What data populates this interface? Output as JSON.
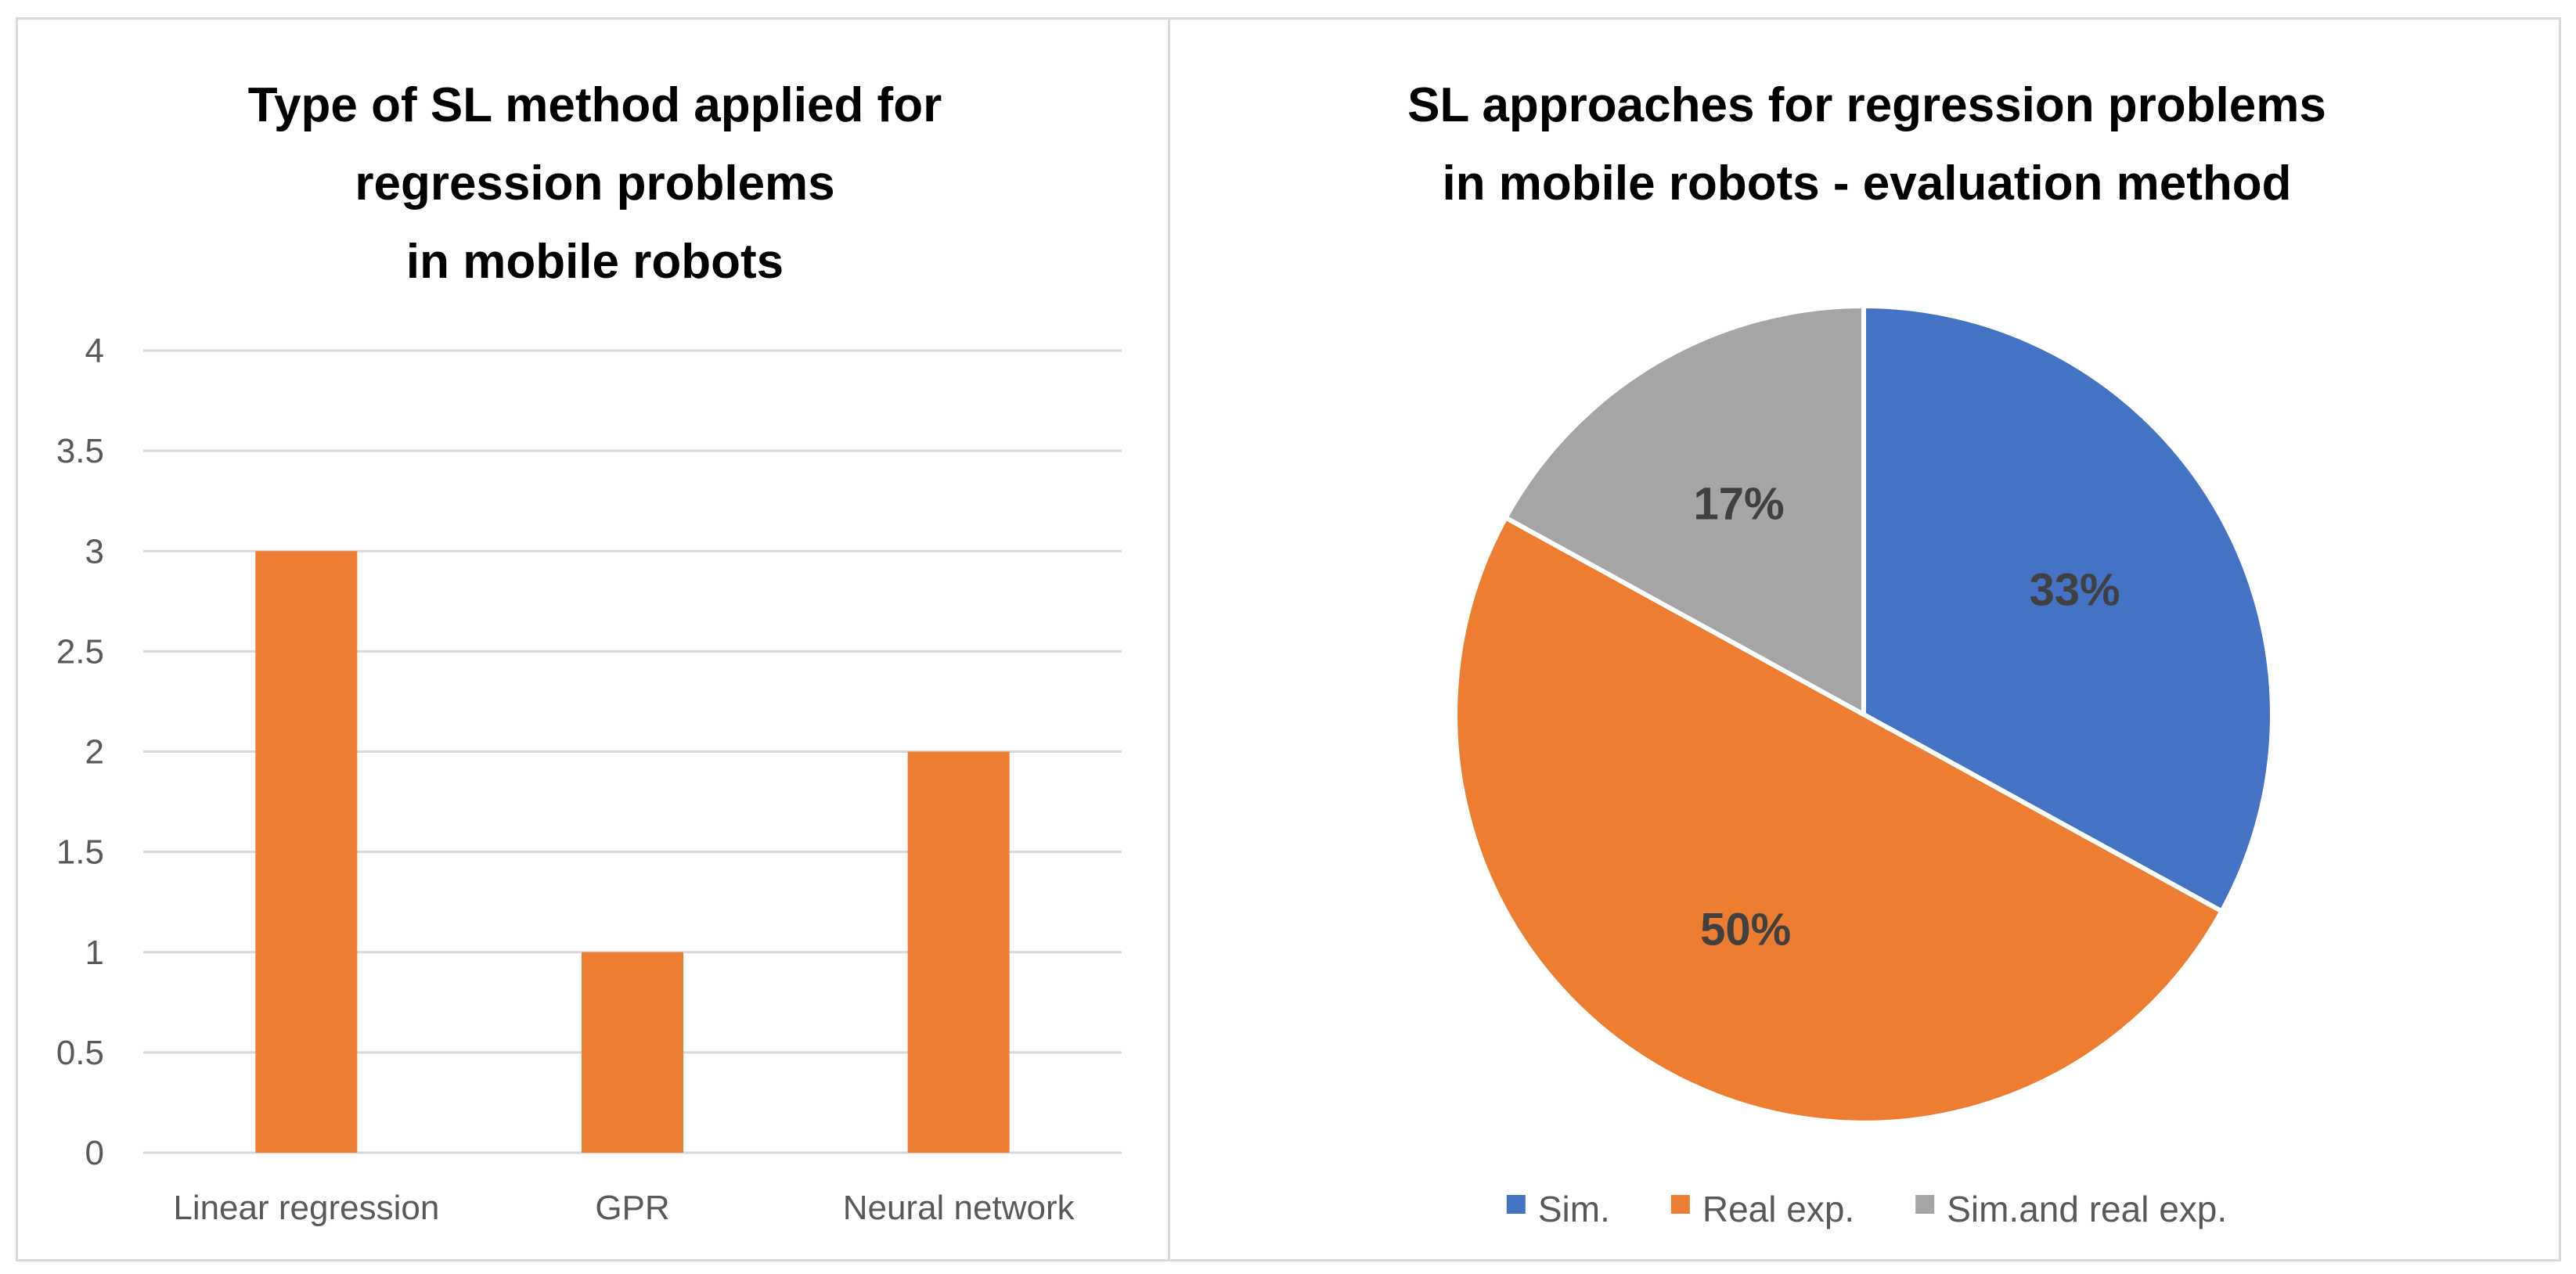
{
  "chart_data": [
    {
      "type": "bar",
      "title_lines": [
        "Type of SL method applied for",
        "regression problems",
        "in mobile robots"
      ],
      "categories": [
        "Linear regression",
        "GPR",
        "Neural network"
      ],
      "values": [
        3,
        1,
        2
      ],
      "ylim": [
        0,
        4
      ],
      "yticks": [
        "0",
        "0.5",
        "1",
        "1.5",
        "2",
        "2.5",
        "3",
        "3.5",
        "4"
      ],
      "xlabel": "",
      "ylabel": "",
      "grid": true,
      "color": "#ED7D31"
    },
    {
      "type": "pie",
      "title_lines": [
        "SL approaches for regression problems",
        "in mobile robots - evaluation method"
      ],
      "slices": [
        {
          "label": "Sim.",
          "value": 33,
          "display": "33%",
          "color": "#4472C4"
        },
        {
          "label": "Real exp.",
          "value": 50,
          "display": "50%",
          "color": "#ED7D31"
        },
        {
          "label": "Sim.and real exp.",
          "value": 17,
          "display": "17%",
          "color": "#A5A5A5"
        }
      ],
      "legend_position": "bottom"
    }
  ]
}
